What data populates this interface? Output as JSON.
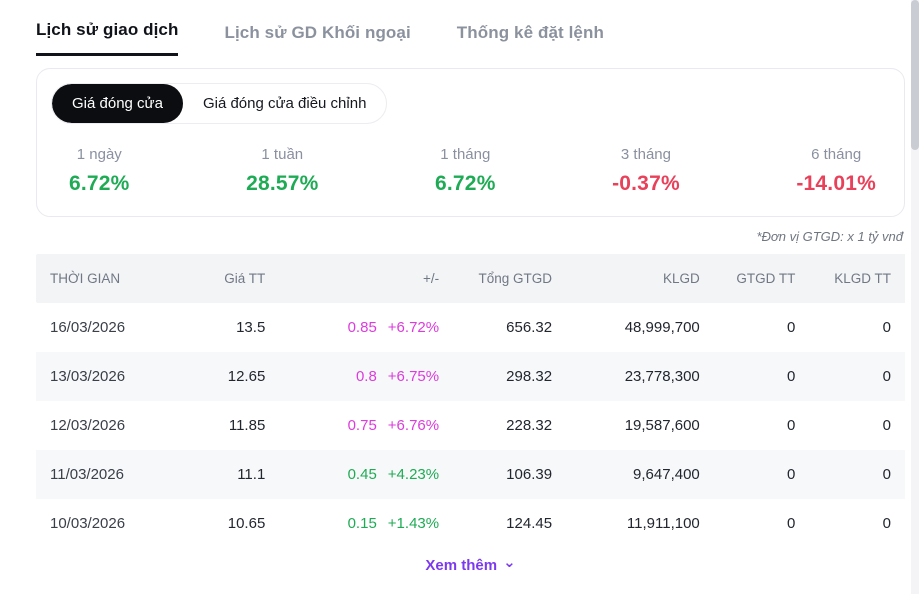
{
  "tabs": [
    {
      "label": "Lịch sử giao dịch",
      "active": true
    },
    {
      "label": "Lịch sử GD Khối ngoại",
      "active": false
    },
    {
      "label": "Thống kê đặt lệnh",
      "active": false
    }
  ],
  "price_toggle": {
    "options": [
      {
        "label": "Giá đóng cửa",
        "active": true
      },
      {
        "label": "Giá đóng cửa điều chỉnh",
        "active": false
      }
    ]
  },
  "performance": [
    {
      "period": "1 ngày",
      "value": "6.72%",
      "trend": "up"
    },
    {
      "period": "1 tuần",
      "value": "28.57%",
      "trend": "up"
    },
    {
      "period": "1 tháng",
      "value": "6.72%",
      "trend": "up"
    },
    {
      "period": "3 tháng",
      "value": "-0.37%",
      "trend": "down"
    },
    {
      "period": "6 tháng",
      "value": "-14.01%",
      "trend": "down"
    }
  ],
  "unit_note": "*Đơn vị GTGD: x 1 tỷ vnđ",
  "table": {
    "headers": [
      "THỜI GIAN",
      "Giá TT",
      "+/-",
      "Tổng GTGD",
      "KLGD",
      "GTGD TT",
      "KLGD TT"
    ],
    "rows": [
      {
        "date": "16/03/2026",
        "price": "13.5",
        "change": "0.85",
        "change_pct": "+6.72%",
        "change_color": "ceiling",
        "total_gtgd": "656.32",
        "klgd": "48,999,700",
        "gtgd_tt": "0",
        "klgd_tt": "0"
      },
      {
        "date": "13/03/2026",
        "price": "12.65",
        "change": "0.8",
        "change_pct": "+6.75%",
        "change_color": "ceiling",
        "total_gtgd": "298.32",
        "klgd": "23,778,300",
        "gtgd_tt": "0",
        "klgd_tt": "0"
      },
      {
        "date": "12/03/2026",
        "price": "11.85",
        "change": "0.75",
        "change_pct": "+6.76%",
        "change_color": "ceiling",
        "total_gtgd": "228.32",
        "klgd": "19,587,600",
        "gtgd_tt": "0",
        "klgd_tt": "0"
      },
      {
        "date": "11/03/2026",
        "price": "11.1",
        "change": "0.45",
        "change_pct": "+4.23%",
        "change_color": "up",
        "total_gtgd": "106.39",
        "klgd": "9,647,400",
        "gtgd_tt": "0",
        "klgd_tt": "0"
      },
      {
        "date": "10/03/2026",
        "price": "10.65",
        "change": "0.15",
        "change_pct": "+1.43%",
        "change_color": "up",
        "total_gtgd": "124.45",
        "klgd": "11,911,100",
        "gtgd_tt": "0",
        "klgd_tt": "0"
      }
    ]
  },
  "load_more": {
    "label": "Xem thêm",
    "chevron": "⌄"
  },
  "colors": {
    "up": "#1fab55",
    "down": "#e8415a",
    "ceiling": "#dd3bdd",
    "accent": "#7c3aed"
  }
}
